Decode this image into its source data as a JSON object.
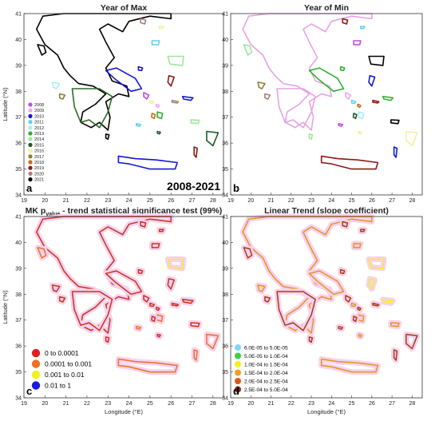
{
  "panels": [
    {
      "id": "a",
      "title": "Year of Max",
      "label": "a",
      "tag": "2008-2021"
    },
    {
      "id": "b",
      "title": "Year of Min",
      "label": "b"
    },
    {
      "id": "c",
      "title_main": "MK p",
      "title_sub": "value",
      "title_rest": " - trend statistical significance test (99%)",
      "label": "c"
    },
    {
      "id": "d",
      "title": "Linear Trend (slope coefficient)",
      "label": "d"
    }
  ],
  "axes": {
    "xlabel": "Longitude (°E)",
    "ylabel": "Latitude (°N)",
    "xticks": [
      "19",
      "20",
      "21",
      "22",
      "23",
      "24",
      "25",
      "26",
      "27",
      "28"
    ],
    "yticks": [
      "34",
      "35",
      "36",
      "37",
      "38",
      "39",
      "40",
      "41"
    ],
    "xlim": [
      19,
      28.5
    ],
    "ylim": [
      34,
      41
    ]
  },
  "year_legend": [
    {
      "label": "2008",
      "color": "#c04de0"
    },
    {
      "label": "2009",
      "color": "#f0a8ee"
    },
    {
      "label": "2010",
      "color": "#1515d6"
    },
    {
      "label": "2011",
      "color": "#5fd0f0"
    },
    {
      "label": "2012",
      "color": "#a8ecf4"
    },
    {
      "label": "2013",
      "color": "#2fb02f"
    },
    {
      "label": "2014",
      "color": "#9be89b"
    },
    {
      "label": "2015",
      "color": "#1c5a2a"
    },
    {
      "label": "2016",
      "color": "#f4f0a0"
    },
    {
      "label": "2017",
      "color": "#8a8030"
    },
    {
      "label": "2018",
      "color": "#c86a1e"
    },
    {
      "label": "2019",
      "color": "#8b1a14"
    },
    {
      "label": "2020",
      "color": "#a88080"
    },
    {
      "label": "2021",
      "color": "#000000"
    }
  ],
  "pvalue_legend": [
    {
      "label": "0  to  0.0001",
      "color": "#e02020"
    },
    {
      "label": "0.0001  to  0.001",
      "color": "#ee7020"
    },
    {
      "label": "0.001  to  0.01",
      "color": "#f4f020"
    },
    {
      "label": "0.01  to  1",
      "color": "#1a1ae0"
    }
  ],
  "slope_legend": [
    {
      "label": "6.0E-05  to  5.0E-05",
      "color": "#7fd7f7"
    },
    {
      "label": "5.0E-05  to  1.0E-04",
      "color": "#3fcf3f"
    },
    {
      "label": "1.0E-04  to  1.5E-04",
      "color": "#f4f020"
    },
    {
      "label": "1.5E-04  to  2.0E-04",
      "color": "#f0a020"
    },
    {
      "label": "2.0E-04  to  2.5E-04",
      "color": "#d85a18"
    },
    {
      "label": "2.5E-04  to  5.0E-04",
      "color": "#8a2a14"
    }
  ],
  "colors": {
    "panel_c_main": "#c8321c",
    "panel_d_main": "#a83c12",
    "halo": "#f6d2ee"
  }
}
